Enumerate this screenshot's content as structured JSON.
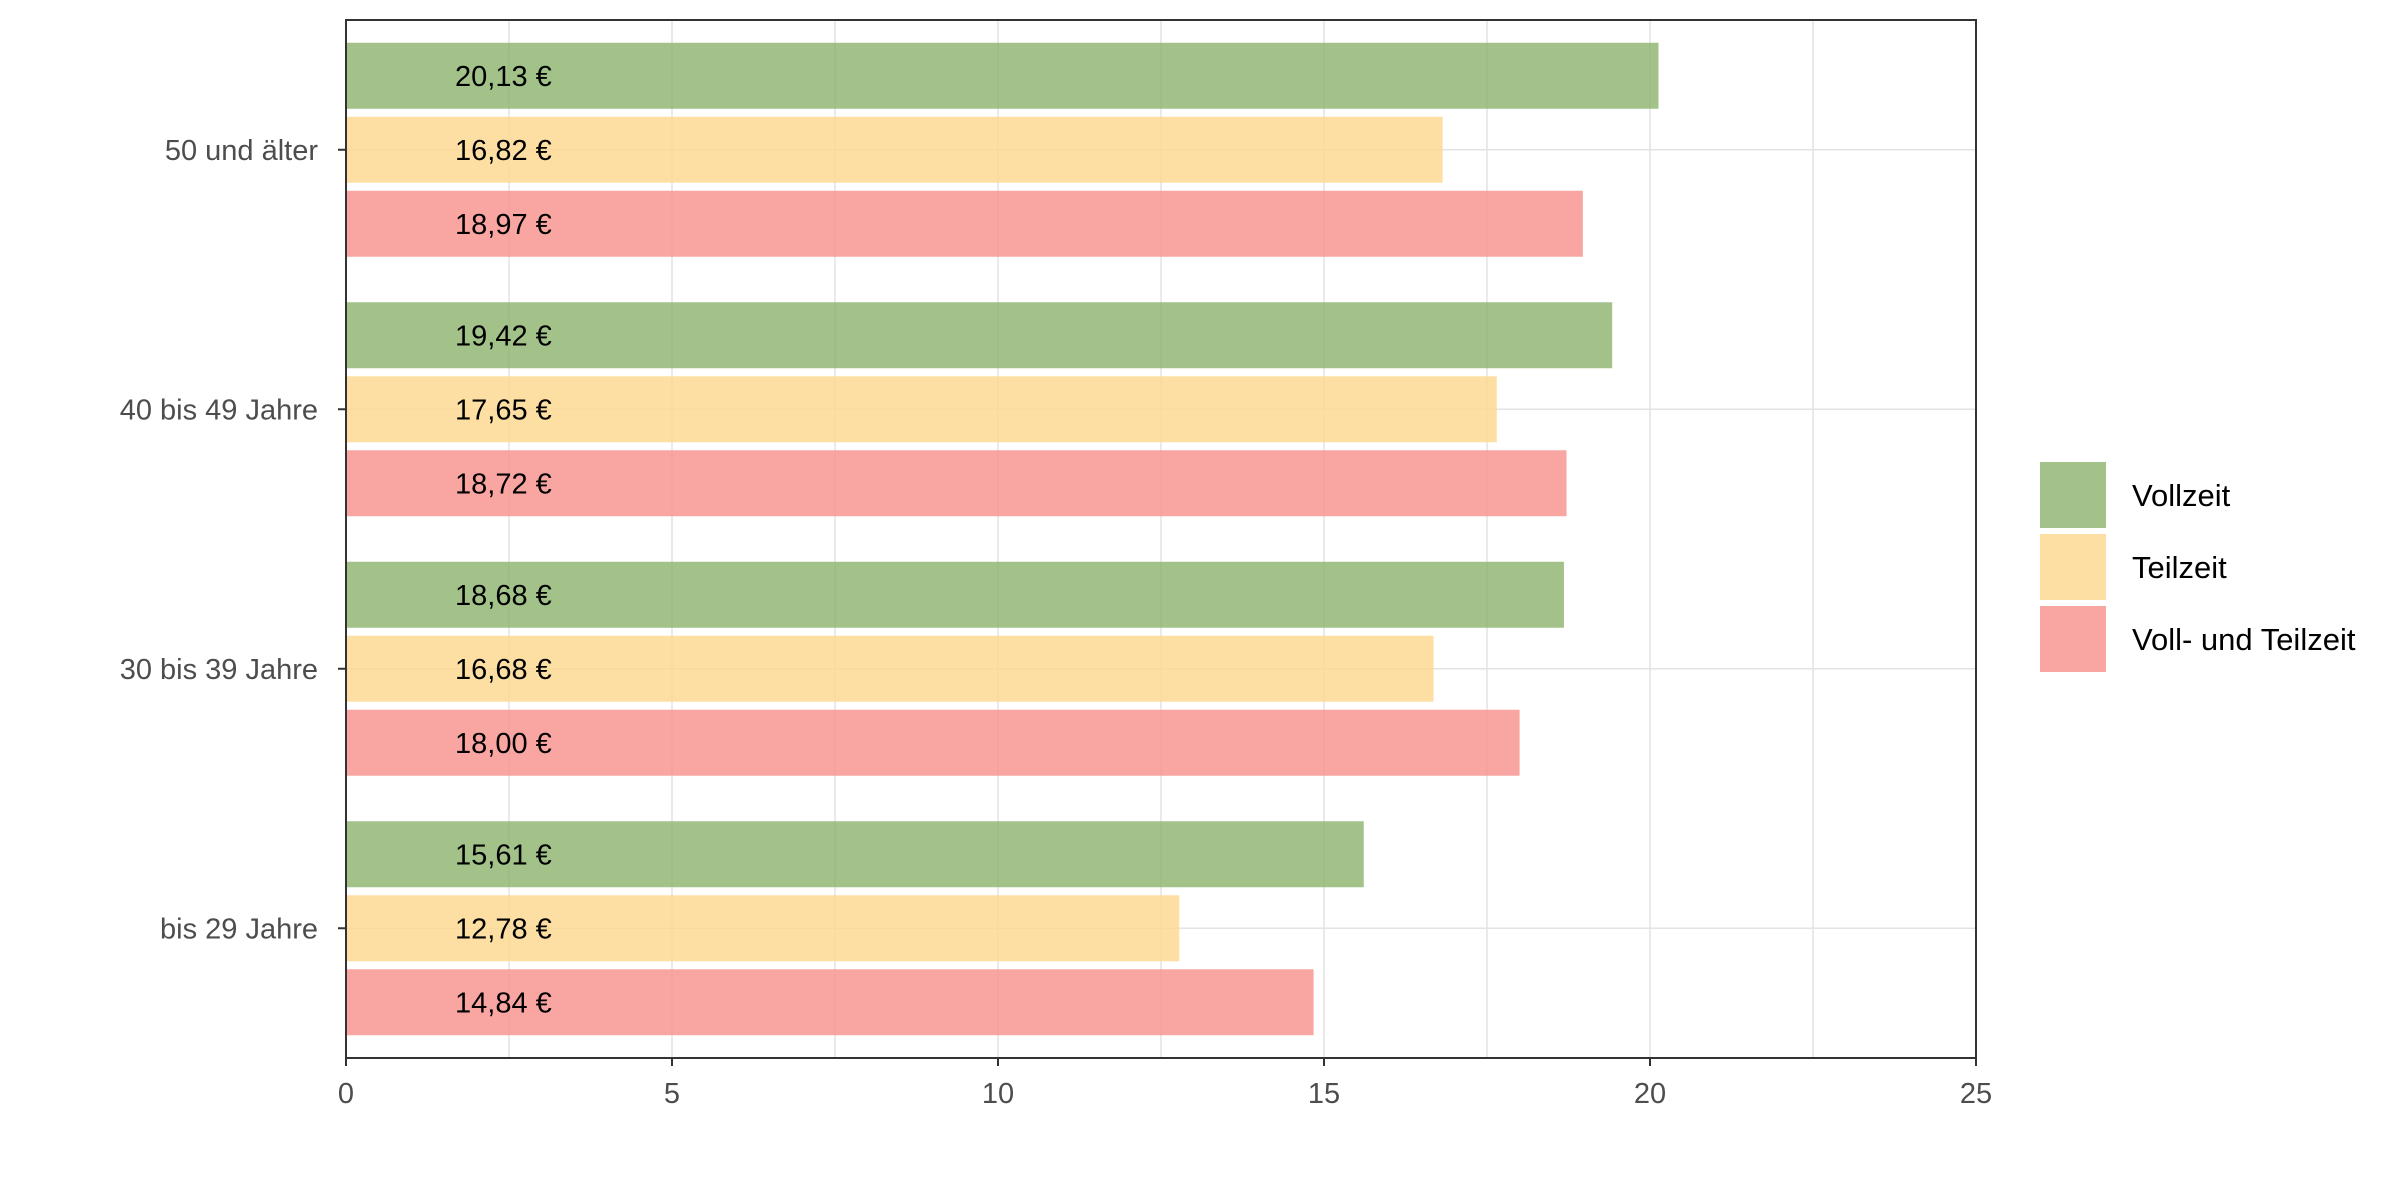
{
  "chart_data": {
    "type": "bar",
    "orientation": "horizontal",
    "categories": [
      "bis 29 Jahre",
      "30 bis 39 Jahre",
      "40 bis 49 Jahre",
      "50 und älter"
    ],
    "series": [
      {
        "name": "Vollzeit",
        "color": "#8db56f",
        "values": [
          15.61,
          18.68,
          19.42,
          20.13
        ],
        "labels": [
          "15,61 €",
          "18,68 €",
          "19,42 €",
          "20,13 €"
        ]
      },
      {
        "name": "Teilzeit",
        "color": "#fed88f",
        "values": [
          12.78,
          16.68,
          17.65,
          16.82
        ],
        "labels": [
          "12,78 €",
          "16,68 €",
          "17,65 €",
          "16,82 €"
        ]
      },
      {
        "name": "Voll- und Teilzeit",
        "color": "#f8928e",
        "values": [
          14.84,
          18.0,
          18.72,
          18.97
        ],
        "labels": [
          "14,84 €",
          "18,00 €",
          "18,72 €",
          "18,97 €"
        ]
      }
    ],
    "xlim": [
      0,
      25
    ],
    "xticks": [
      0,
      5,
      10,
      15,
      20,
      25
    ],
    "xtick_labels": [
      "0",
      "5",
      "10",
      "15",
      "20",
      "25"
    ],
    "grid": true,
    "legend_position": "right",
    "title": "",
    "xlabel": "",
    "ylabel": ""
  }
}
